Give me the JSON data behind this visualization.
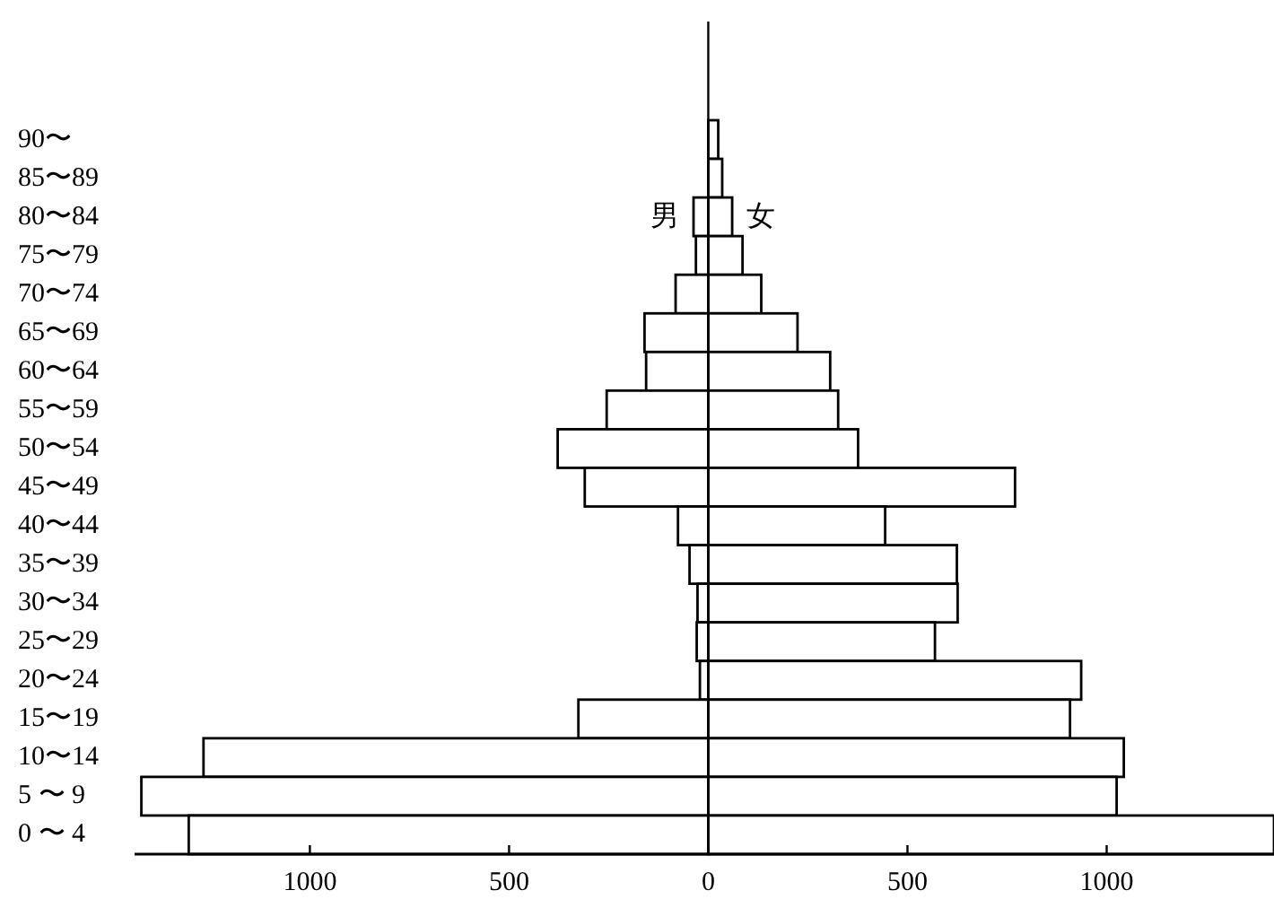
{
  "chart_data": {
    "type": "bar",
    "orientation": "horizontal",
    "stacked": true,
    "categories": [
      "90〜",
      "85〜89",
      "80〜84",
      "75〜79",
      "70〜74",
      "65〜69",
      "60〜64",
      "55〜59",
      "50〜54",
      "45〜49",
      "40〜44",
      "35〜39",
      "30〜34",
      "25〜29",
      "20〜24",
      "15〜19",
      "10〜14",
      "5 〜 9",
      "0 〜 4"
    ],
    "series": [
      {
        "name": "男",
        "color": "#ffffff",
        "values": [
          null,
          null,
          -37,
          -31,
          -82,
          -160,
          -156,
          -255,
          -378,
          -310,
          -76,
          -47,
          -27,
          -29,
          -21,
          -326,
          -1267,
          -1423,
          -1304
        ]
      },
      {
        "name": "女",
        "color": "#ffffff",
        "values": [
          25,
          35,
          60,
          86,
          133,
          224,
          306,
          326,
          376,
          770,
          444,
          624,
          626,
          569,
          936,
          908,
          1043,
          1025,
          1420
        ]
      }
    ],
    "xlim": [
      -1440,
      1420
    ],
    "xticks": [
      {
        "value": -1000,
        "label": "1000"
      },
      {
        "value": -500,
        "label": "500"
      },
      0,
      500,
      1000
    ],
    "ref_lines": [
      {
        "axis": "x",
        "value": 0
      }
    ],
    "grid": false
  }
}
